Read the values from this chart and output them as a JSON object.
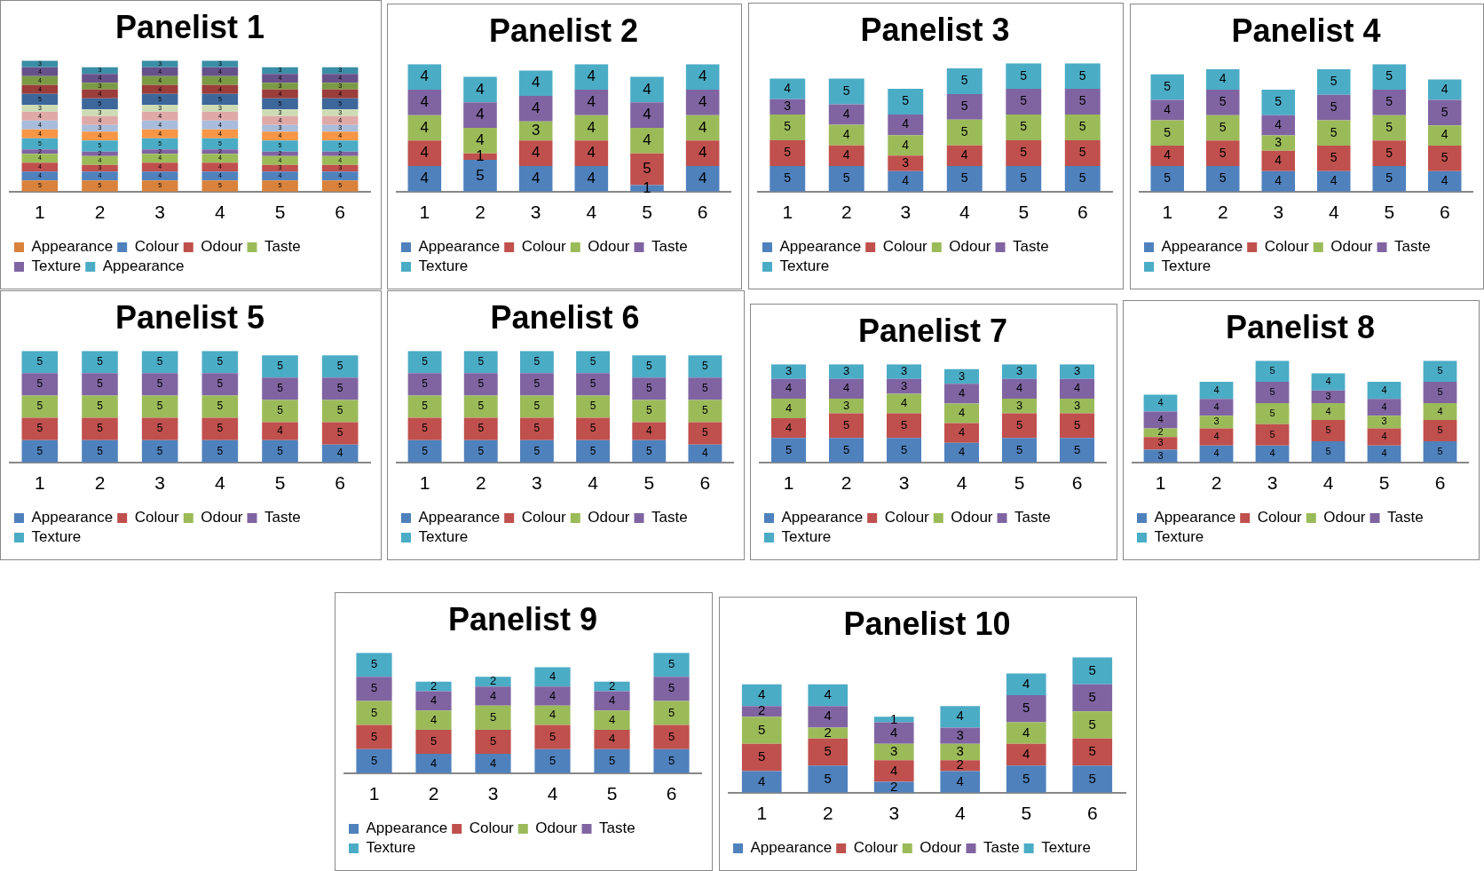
{
  "chart_data": [
    {
      "type": "bar",
      "title": "Panelist 1",
      "categories": [
        "1",
        "2",
        "3",
        "4",
        "5",
        "6"
      ],
      "stacked": true,
      "data_labels": true,
      "legend": "bottom",
      "series": [
        {
          "name": "Appearance",
          "color": "#d9823b",
          "values": [
            5,
            5,
            5,
            5,
            5,
            5
          ]
        },
        {
          "name": "Colour",
          "color": "#4f81bd",
          "values": [
            4,
            4,
            4,
            4,
            4,
            4
          ]
        },
        {
          "name": "Odour",
          "color": "#c0504d",
          "values": [
            4,
            3,
            4,
            4,
            3,
            3
          ]
        },
        {
          "name": "Taste",
          "color": "#9bbb59",
          "values": [
            4,
            4,
            4,
            4,
            4,
            4
          ]
        },
        {
          "name": "Texture",
          "color": "#8064a2",
          "values": [
            2,
            2,
            2,
            2,
            2,
            2
          ]
        },
        {
          "name": "Appearance",
          "color": "#4bacc6",
          "values": [
            5,
            5,
            5,
            5,
            5,
            5
          ]
        },
        {
          "color": "#f79646",
          "values": [
            4,
            4,
            4,
            4,
            4,
            4
          ]
        },
        {
          "color": "#a9bcdc",
          "values": [
            4,
            3,
            4,
            4,
            3,
            3
          ]
        },
        {
          "color": "#dfa9a8",
          "values": [
            4,
            4,
            4,
            4,
            4,
            4
          ]
        },
        {
          "color": "#cddcb4",
          "values": [
            3,
            3,
            3,
            3,
            3,
            3
          ]
        },
        {
          "color": "#3d679b",
          "values": [
            5,
            5,
            5,
            5,
            5,
            5
          ]
        },
        {
          "color": "#9b3d3b",
          "values": [
            4,
            4,
            4,
            4,
            4,
            4
          ]
        },
        {
          "color": "#7b9a45",
          "values": [
            4,
            3,
            4,
            4,
            3,
            3
          ]
        },
        {
          "color": "#67518a",
          "values": [
            4,
            4,
            4,
            4,
            4,
            4
          ]
        },
        {
          "color": "#3a8ea6",
          "values": [
            3,
            3,
            3,
            3,
            3,
            3
          ]
        }
      ]
    },
    {
      "type": "bar",
      "title": "Panelist 2",
      "categories": [
        "1",
        "2",
        "3",
        "4",
        "5",
        "6"
      ],
      "stacked": true,
      "data_labels": true,
      "legend": "bottom",
      "series": [
        {
          "name": "Appearance",
          "color": "#4f81bd",
          "values": [
            4,
            5,
            4,
            4,
            1,
            4
          ]
        },
        {
          "name": "Colour",
          "color": "#c0504d",
          "values": [
            4,
            1,
            4,
            4,
            5,
            4
          ]
        },
        {
          "name": "Odour",
          "color": "#9bbb59",
          "values": [
            4,
            4,
            3,
            4,
            4,
            4
          ]
        },
        {
          "name": "Taste",
          "color": "#8064a2",
          "values": [
            4,
            4,
            4,
            4,
            4,
            4
          ]
        },
        {
          "name": "Texture",
          "color": "#4bacc6",
          "values": [
            4,
            4,
            4,
            4,
            4,
            4
          ]
        }
      ]
    },
    {
      "type": "bar",
      "title": "Panelist 3",
      "categories": [
        "1",
        "2",
        "3",
        "4",
        "5",
        "6"
      ],
      "stacked": true,
      "data_labels": true,
      "legend": "bottom",
      "series": [
        {
          "name": "Appearance",
          "color": "#4f81bd",
          "values": [
            5,
            5,
            4,
            5,
            5,
            5
          ]
        },
        {
          "name": "Colour",
          "color": "#c0504d",
          "values": [
            5,
            4,
            3,
            4,
            5,
            5
          ]
        },
        {
          "name": "Odour",
          "color": "#9bbb59",
          "values": [
            5,
            4,
            4,
            5,
            5,
            5
          ]
        },
        {
          "name": "Taste",
          "color": "#8064a2",
          "values": [
            3,
            4,
            4,
            5,
            5,
            5
          ]
        },
        {
          "name": "Texture",
          "color": "#4bacc6",
          "values": [
            4,
            5,
            5,
            5,
            5,
            5
          ]
        }
      ]
    },
    {
      "type": "bar",
      "title": "Panelist 4",
      "categories": [
        "1",
        "2",
        "3",
        "4",
        "5",
        "6"
      ],
      "stacked": true,
      "data_labels": true,
      "legend": "bottom",
      "series": [
        {
          "name": "Appearance",
          "color": "#4f81bd",
          "values": [
            5,
            5,
            4,
            4,
            5,
            4
          ]
        },
        {
          "name": "Colour",
          "color": "#c0504d",
          "values": [
            4,
            5,
            4,
            5,
            5,
            5
          ]
        },
        {
          "name": "Odour",
          "color": "#9bbb59",
          "values": [
            5,
            5,
            3,
            5,
            5,
            4
          ]
        },
        {
          "name": "Taste",
          "color": "#8064a2",
          "values": [
            4,
            5,
            4,
            5,
            5,
            5
          ]
        },
        {
          "name": "Texture",
          "color": "#4bacc6",
          "values": [
            5,
            4,
            5,
            5,
            5,
            4
          ]
        }
      ]
    },
    {
      "type": "bar",
      "title": "Panelist 5",
      "categories": [
        "1",
        "2",
        "3",
        "4",
        "5",
        "6"
      ],
      "stacked": true,
      "data_labels": true,
      "legend": "bottom",
      "series": [
        {
          "name": "Appearance",
          "color": "#4f81bd",
          "values": [
            5,
            5,
            5,
            5,
            5,
            4
          ]
        },
        {
          "name": "Colour",
          "color": "#c0504d",
          "values": [
            5,
            5,
            5,
            5,
            4,
            5
          ]
        },
        {
          "name": "Odour",
          "color": "#9bbb59",
          "values": [
            5,
            5,
            5,
            5,
            5,
            5
          ]
        },
        {
          "name": "Taste",
          "color": "#8064a2",
          "values": [
            5,
            5,
            5,
            5,
            5,
            5
          ]
        },
        {
          "name": "Texture",
          "color": "#4bacc6",
          "values": [
            5,
            5,
            5,
            5,
            5,
            5
          ]
        }
      ]
    },
    {
      "type": "bar",
      "title": "Panelist 6",
      "categories": [
        "1",
        "2",
        "3",
        "4",
        "5",
        "6"
      ],
      "stacked": true,
      "data_labels": true,
      "legend": "bottom",
      "series": [
        {
          "name": "Appearance",
          "color": "#4f81bd",
          "values": [
            5,
            5,
            5,
            5,
            5,
            4
          ]
        },
        {
          "name": "Colour",
          "color": "#c0504d",
          "values": [
            5,
            5,
            5,
            5,
            4,
            5
          ]
        },
        {
          "name": "Odour",
          "color": "#9bbb59",
          "values": [
            5,
            5,
            5,
            5,
            5,
            5
          ]
        },
        {
          "name": "Taste",
          "color": "#8064a2",
          "values": [
            5,
            5,
            5,
            5,
            5,
            5
          ]
        },
        {
          "name": "Texture",
          "color": "#4bacc6",
          "values": [
            5,
            5,
            5,
            5,
            5,
            5
          ]
        }
      ]
    },
    {
      "type": "bar",
      "title": "Panelist 7",
      "categories": [
        "1",
        "2",
        "3",
        "4",
        "5",
        "6"
      ],
      "stacked": true,
      "data_labels": true,
      "legend": "bottom",
      "series": [
        {
          "name": "Appearance",
          "color": "#4f81bd",
          "values": [
            5,
            5,
            5,
            4,
            5,
            5
          ]
        },
        {
          "name": "Colour",
          "color": "#c0504d",
          "values": [
            4,
            5,
            5,
            4,
            5,
            5
          ]
        },
        {
          "name": "Odour",
          "color": "#9bbb59",
          "values": [
            4,
            3,
            4,
            4,
            3,
            3
          ]
        },
        {
          "name": "Taste",
          "color": "#8064a2",
          "values": [
            4,
            4,
            3,
            4,
            4,
            4
          ]
        },
        {
          "name": "Texture",
          "color": "#4bacc6",
          "values": [
            3,
            3,
            3,
            3,
            3,
            3
          ]
        }
      ]
    },
    {
      "type": "bar",
      "title": "Panelist 8",
      "categories": [
        "1",
        "2",
        "3",
        "4",
        "5",
        "6"
      ],
      "stacked": true,
      "data_labels": true,
      "legend": "bottom",
      "series": [
        {
          "name": "Appearance",
          "color": "#4f81bd",
          "values": [
            3,
            4,
            4,
            5,
            4,
            5
          ]
        },
        {
          "name": "Colour",
          "color": "#c0504d",
          "values": [
            3,
            4,
            5,
            5,
            4,
            5
          ]
        },
        {
          "name": "Odour",
          "color": "#9bbb59",
          "values": [
            2,
            3,
            5,
            4,
            3,
            4
          ]
        },
        {
          "name": "Taste",
          "color": "#8064a2",
          "values": [
            4,
            4,
            5,
            3,
            4,
            5
          ]
        },
        {
          "name": "Texture",
          "color": "#4bacc6",
          "values": [
            4,
            4,
            5,
            4,
            4,
            5
          ]
        }
      ]
    },
    {
      "type": "bar",
      "title": "Panelist 9",
      "categories": [
        "1",
        "2",
        "3",
        "4",
        "5",
        "6"
      ],
      "stacked": true,
      "data_labels": true,
      "legend": "bottom",
      "series": [
        {
          "name": "Appearance",
          "color": "#4f81bd",
          "values": [
            5,
            4,
            4,
            5,
            5,
            5
          ]
        },
        {
          "name": "Colour",
          "color": "#c0504d",
          "values": [
            5,
            5,
            5,
            5,
            4,
            5
          ]
        },
        {
          "name": "Odour",
          "color": "#9bbb59",
          "values": [
            5,
            4,
            5,
            4,
            4,
            5
          ]
        },
        {
          "name": "Taste",
          "color": "#8064a2",
          "values": [
            5,
            4,
            4,
            4,
            4,
            5
          ]
        },
        {
          "name": "Texture",
          "color": "#4bacc6",
          "values": [
            5,
            2,
            2,
            4,
            2,
            5
          ]
        }
      ]
    },
    {
      "type": "bar",
      "title": "Panelist 10",
      "categories": [
        "1",
        "2",
        "3",
        "4",
        "5",
        "6"
      ],
      "stacked": true,
      "data_labels": true,
      "legend": "bottom",
      "series": [
        {
          "name": "Appearance",
          "color": "#4f81bd",
          "values": [
            4,
            5,
            2,
            4,
            5,
            5
          ]
        },
        {
          "name": "Colour",
          "color": "#c0504d",
          "values": [
            5,
            5,
            4,
            2,
            4,
            5
          ]
        },
        {
          "name": "Odour",
          "color": "#9bbb59",
          "values": [
            5,
            2,
            3,
            3,
            4,
            5
          ]
        },
        {
          "name": "Taste",
          "color": "#8064a2",
          "values": [
            2,
            4,
            4,
            3,
            5,
            5
          ]
        },
        {
          "name": "Texture",
          "color": "#4bacc6",
          "values": [
            4,
            4,
            1,
            4,
            4,
            5
          ]
        }
      ]
    }
  ]
}
